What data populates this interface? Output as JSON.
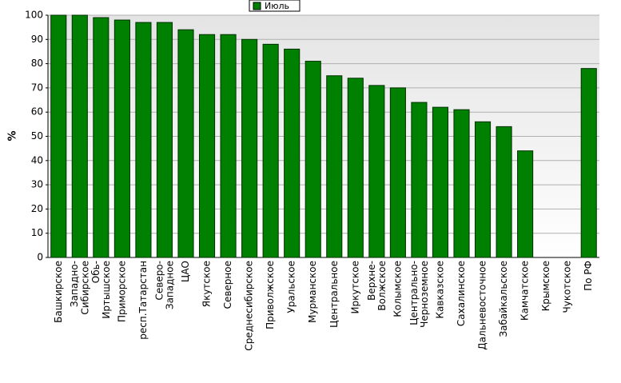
{
  "chart_data": {
    "type": "bar",
    "y_label": "%",
    "legend": "top",
    "color": "#008000",
    "categories": [
      "Башкирское",
      "Западно-Сибирское",
      "Обь-Иртышское",
      "Приморское",
      "респ.Татарстан",
      "Северо-Западное",
      "ЦАО",
      "Якутское",
      "Северное",
      "Среднесибирское",
      "Приволжское",
      "Уральское",
      "Мурманское",
      "Центральное",
      "Иркутское",
      "Верхне-Волжское",
      "Колымское",
      "Центрально-Черноземное",
      "Кавказское",
      "Сахалинское",
      "Дальневосточное",
      "Забайкальское",
      "Камчатское",
      "Крымское",
      "Чукотское",
      "По РФ"
    ],
    "series": [
      {
        "name": "Июль",
        "color": "#008000",
        "values": [
          100,
          100,
          99,
          98,
          97,
          97,
          94,
          92,
          92,
          90,
          88,
          86,
          81,
          75,
          74,
          71,
          70,
          64,
          62,
          61,
          56,
          54,
          44,
          0,
          0,
          78
        ]
      }
    ],
    "ylim": [
      0,
      100
    ],
    "yticks": [
      0,
      10,
      20,
      30,
      40,
      50,
      60,
      70,
      80,
      90,
      100
    ],
    "grid": true
  }
}
